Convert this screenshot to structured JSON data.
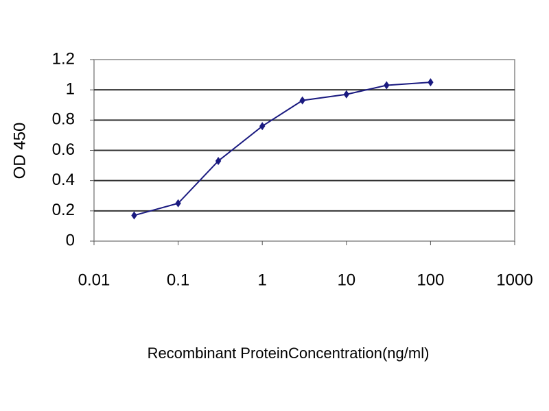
{
  "chart_data": {
    "type": "line",
    "ylabel": "OD 450",
    "xlabel": "Recombinant ProteinConcentration(ng/ml)",
    "x": [
      0.03,
      0.1,
      0.3,
      1,
      3,
      10,
      30,
      100
    ],
    "series": [
      {
        "name": "OD 450",
        "color": "#1a1a80",
        "values": [
          0.17,
          0.25,
          0.53,
          0.76,
          0.93,
          0.97,
          1.03,
          1.05
        ]
      }
    ],
    "xlim": [
      0.01,
      1000
    ],
    "xticks": [
      0.01,
      0.1,
      1,
      10,
      100,
      1000
    ],
    "xscale": "log",
    "ylim": [
      0,
      1.2
    ],
    "yticks": [
      0,
      0.2,
      0.4,
      0.6,
      0.8,
      1,
      1.2
    ],
    "grid": true
  }
}
